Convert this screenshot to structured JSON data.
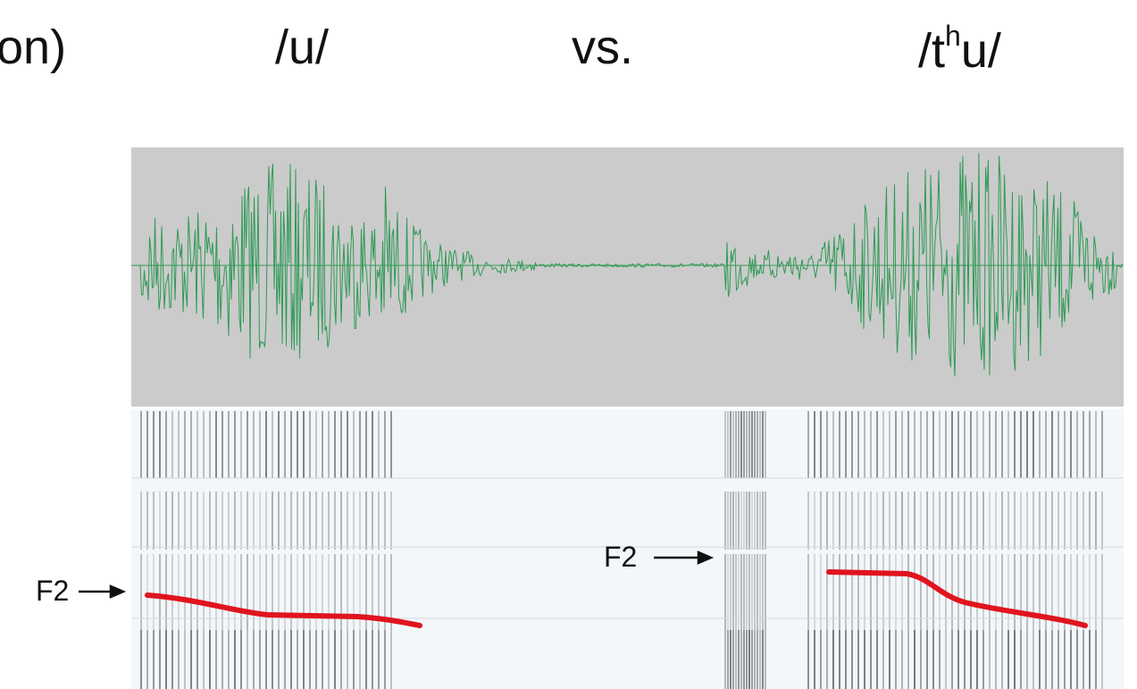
{
  "header": {
    "cut_text": "on)",
    "left_sound": "/u/",
    "versus": "vs.",
    "right_sound": {
      "before": "/t",
      "superscript": "h",
      "after": "u/"
    }
  },
  "labels": {
    "left_f2": "F2",
    "right_f2": "F2"
  }
}
